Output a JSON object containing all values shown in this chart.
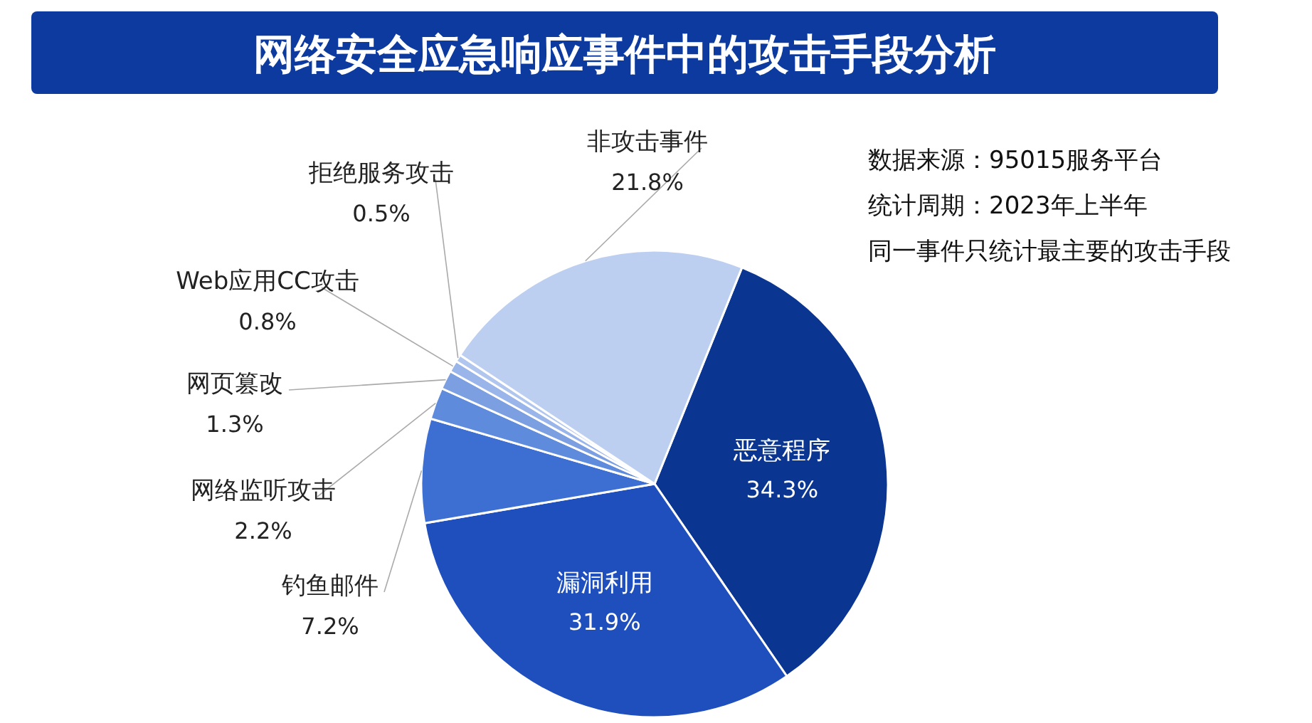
{
  "chart_data": {
    "type": "pie",
    "title": "网络安全应急响应事件中的攻击手段分析",
    "categories": [
      "恶意程序",
      "漏洞利用",
      "钓鱼邮件",
      "网络监听攻击",
      "网页篡改",
      "Web应用CC攻击",
      "拒绝服务攻击",
      "非攻击事件"
    ],
    "values": [
      34.3,
      31.9,
      7.2,
      2.2,
      1.3,
      0.8,
      0.5,
      21.8
    ],
    "value_labels": [
      "34.3%",
      "31.9%",
      "7.2%",
      "2.2%",
      "1.3%",
      "0.8%",
      "0.5%",
      "21.8%"
    ],
    "colors": [
      "#0a3590",
      "#1f4fbd",
      "#3d6fd2",
      "#5f8bdc",
      "#7c9fe2",
      "#9ab5ea",
      "#b0c6ee",
      "#bccff0"
    ],
    "annotations": [
      "数据来源：95015服务平台",
      "统计周期：2023年上半年",
      "同一事件只统计最主要的攻击手段"
    ],
    "grid": false
  }
}
